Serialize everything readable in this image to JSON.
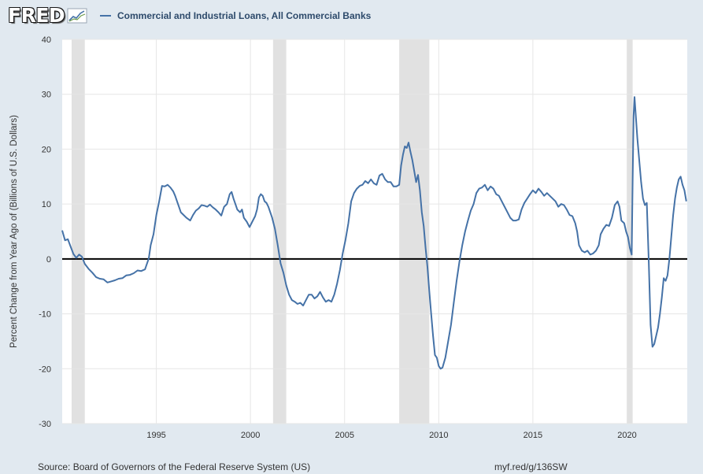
{
  "header": {
    "logo_text": "FRED",
    "legend_label": "Commercial and Industrial Loans, All Commercial Banks"
  },
  "footer": {
    "source": "Source: Board of Governors of the Federal Reserve System (US)",
    "url": "myf.red/g/136SW"
  },
  "colors": {
    "line": "#4572a7",
    "recession": "#e1e1e1",
    "zero_line": "#000000",
    "grid": "#e6e6e6",
    "background": "#e1e9f0",
    "plot": "#ffffff"
  },
  "chart_data": {
    "type": "line",
    "title": "",
    "xlabel": "",
    "ylabel": "Percent Change from Year Ago of (Billions of U.S. Dollars)",
    "xlim": [
      1990.0,
      2023.2
    ],
    "ylim": [
      -30,
      40
    ],
    "yticks": [
      -30,
      -20,
      -10,
      0,
      10,
      20,
      30,
      40
    ],
    "xticks": [
      1995,
      2000,
      2005,
      2010,
      2015,
      2020
    ],
    "grid": true,
    "recessions": [
      [
        1990.5,
        1991.2
      ],
      [
        2001.2,
        2001.9
      ],
      [
        2007.9,
        2009.5
      ],
      [
        2020.0,
        2020.3
      ]
    ],
    "series": [
      {
        "name": "Commercial and Industrial Loans, All Commercial Banks",
        "points": [
          [
            1990.0,
            5.2
          ],
          [
            1990.15,
            3.4
          ],
          [
            1990.3,
            3.6
          ],
          [
            1990.45,
            2.2
          ],
          [
            1990.6,
            0.9
          ],
          [
            1990.75,
            0.2
          ],
          [
            1990.9,
            0.8
          ],
          [
            1991.05,
            0.4
          ],
          [
            1991.2,
            -0.9
          ],
          [
            1991.4,
            -1.8
          ],
          [
            1991.6,
            -2.5
          ],
          [
            1991.8,
            -3.3
          ],
          [
            1992.0,
            -3.6
          ],
          [
            1992.2,
            -3.7
          ],
          [
            1992.4,
            -4.3
          ],
          [
            1992.6,
            -4.1
          ],
          [
            1992.8,
            -3.9
          ],
          [
            1993.0,
            -3.6
          ],
          [
            1993.2,
            -3.5
          ],
          [
            1993.4,
            -3.0
          ],
          [
            1993.6,
            -2.9
          ],
          [
            1993.8,
            -2.6
          ],
          [
            1994.0,
            -2.1
          ],
          [
            1994.2,
            -2.2
          ],
          [
            1994.4,
            -1.9
          ],
          [
            1994.6,
            0.1
          ],
          [
            1994.7,
            2.5
          ],
          [
            1994.85,
            4.5
          ],
          [
            1995.0,
            8.0
          ],
          [
            1995.15,
            10.5
          ],
          [
            1995.3,
            13.3
          ],
          [
            1995.45,
            13.2
          ],
          [
            1995.6,
            13.5
          ],
          [
            1995.75,
            13.0
          ],
          [
            1995.9,
            12.3
          ],
          [
            1996.0,
            11.5
          ],
          [
            1996.1,
            10.5
          ],
          [
            1996.2,
            9.5
          ],
          [
            1996.3,
            8.5
          ],
          [
            1996.45,
            8.0
          ],
          [
            1996.6,
            7.5
          ],
          [
            1996.8,
            7.0
          ],
          [
            1996.95,
            8.0
          ],
          [
            1997.1,
            8.8
          ],
          [
            1997.25,
            9.2
          ],
          [
            1997.4,
            9.8
          ],
          [
            1997.55,
            9.7
          ],
          [
            1997.7,
            9.5
          ],
          [
            1997.85,
            9.9
          ],
          [
            1998.0,
            9.4
          ],
          [
            1998.15,
            9.0
          ],
          [
            1998.3,
            8.5
          ],
          [
            1998.45,
            7.9
          ],
          [
            1998.6,
            9.5
          ],
          [
            1998.75,
            10.0
          ],
          [
            1998.9,
            11.8
          ],
          [
            1999.0,
            12.2
          ],
          [
            1999.1,
            11.0
          ],
          [
            1999.2,
            10.0
          ],
          [
            1999.3,
            9.0
          ],
          [
            1999.45,
            8.5
          ],
          [
            1999.55,
            9.0
          ],
          [
            1999.65,
            7.5
          ],
          [
            1999.8,
            6.8
          ],
          [
            1999.95,
            5.8
          ],
          [
            2000.1,
            6.8
          ],
          [
            2000.25,
            7.8
          ],
          [
            2000.35,
            9.0
          ],
          [
            2000.45,
            11.2
          ],
          [
            2000.55,
            11.8
          ],
          [
            2000.65,
            11.5
          ],
          [
            2000.75,
            10.5
          ],
          [
            2000.85,
            10.2
          ],
          [
            2000.95,
            9.5
          ],
          [
            2001.05,
            8.5
          ],
          [
            2001.15,
            7.5
          ],
          [
            2001.3,
            5.5
          ],
          [
            2001.45,
            2.5
          ],
          [
            2001.6,
            -0.8
          ],
          [
            2001.75,
            -2.5
          ],
          [
            2001.9,
            -4.8
          ],
          [
            2002.05,
            -6.5
          ],
          [
            2002.2,
            -7.5
          ],
          [
            2002.35,
            -7.8
          ],
          [
            2002.5,
            -8.2
          ],
          [
            2002.65,
            -8.0
          ],
          [
            2002.8,
            -8.5
          ],
          [
            2002.95,
            -7.5
          ],
          [
            2003.1,
            -6.5
          ],
          [
            2003.25,
            -6.5
          ],
          [
            2003.4,
            -7.2
          ],
          [
            2003.55,
            -6.8
          ],
          [
            2003.7,
            -6.0
          ],
          [
            2003.85,
            -7.0
          ],
          [
            2004.0,
            -7.8
          ],
          [
            2004.15,
            -7.5
          ],
          [
            2004.3,
            -7.8
          ],
          [
            2004.45,
            -6.5
          ],
          [
            2004.6,
            -4.5
          ],
          [
            2004.75,
            -2.0
          ],
          [
            2004.9,
            1.0
          ],
          [
            2005.05,
            3.5
          ],
          [
            2005.2,
            6.5
          ],
          [
            2005.35,
            10.5
          ],
          [
            2005.5,
            12.0
          ],
          [
            2005.65,
            12.8
          ],
          [
            2005.8,
            13.3
          ],
          [
            2005.95,
            13.5
          ],
          [
            2006.1,
            14.2
          ],
          [
            2006.25,
            13.8
          ],
          [
            2006.4,
            14.5
          ],
          [
            2006.55,
            13.8
          ],
          [
            2006.7,
            13.5
          ],
          [
            2006.85,
            15.2
          ],
          [
            2007.0,
            15.5
          ],
          [
            2007.15,
            14.5
          ],
          [
            2007.3,
            14.0
          ],
          [
            2007.45,
            14.0
          ],
          [
            2007.6,
            13.2
          ],
          [
            2007.75,
            13.2
          ],
          [
            2007.9,
            13.5
          ],
          [
            2008.0,
            17.0
          ],
          [
            2008.1,
            19.0
          ],
          [
            2008.2,
            20.5
          ],
          [
            2008.3,
            20.2
          ],
          [
            2008.4,
            21.2
          ],
          [
            2008.5,
            19.5
          ],
          [
            2008.6,
            18.0
          ],
          [
            2008.7,
            16.0
          ],
          [
            2008.8,
            14.0
          ],
          [
            2008.9,
            15.3
          ],
          [
            2009.0,
            12.5
          ],
          [
            2009.1,
            8.5
          ],
          [
            2009.2,
            6.0
          ],
          [
            2009.3,
            2.0
          ],
          [
            2009.4,
            -1.5
          ],
          [
            2009.5,
            -6.0
          ],
          [
            2009.6,
            -10.0
          ],
          [
            2009.7,
            -14.0
          ],
          [
            2009.8,
            -17.5
          ],
          [
            2009.9,
            -18.0
          ],
          [
            2010.0,
            -19.5
          ],
          [
            2010.1,
            -20.0
          ],
          [
            2010.2,
            -19.8
          ],
          [
            2010.35,
            -18.0
          ],
          [
            2010.5,
            -15.0
          ],
          [
            2010.65,
            -12.0
          ],
          [
            2010.8,
            -8.0
          ],
          [
            2010.95,
            -4.0
          ],
          [
            2011.1,
            -0.5
          ],
          [
            2011.25,
            2.5
          ],
          [
            2011.4,
            5.0
          ],
          [
            2011.55,
            7.0
          ],
          [
            2011.7,
            8.8
          ],
          [
            2011.85,
            10.0
          ],
          [
            2012.0,
            12.0
          ],
          [
            2012.15,
            12.8
          ],
          [
            2012.3,
            13.0
          ],
          [
            2012.45,
            13.5
          ],
          [
            2012.6,
            12.5
          ],
          [
            2012.75,
            13.2
          ],
          [
            2012.9,
            12.8
          ],
          [
            2013.05,
            11.8
          ],
          [
            2013.2,
            11.5
          ],
          [
            2013.35,
            10.5
          ],
          [
            2013.5,
            9.5
          ],
          [
            2013.65,
            8.5
          ],
          [
            2013.8,
            7.5
          ],
          [
            2013.95,
            7.0
          ],
          [
            2014.1,
            7.0
          ],
          [
            2014.25,
            7.2
          ],
          [
            2014.4,
            9.0
          ],
          [
            2014.55,
            10.2
          ],
          [
            2014.7,
            11.0
          ],
          [
            2014.85,
            11.8
          ],
          [
            2015.0,
            12.5
          ],
          [
            2015.15,
            12.0
          ],
          [
            2015.3,
            12.8
          ],
          [
            2015.45,
            12.2
          ],
          [
            2015.6,
            11.5
          ],
          [
            2015.75,
            12.0
          ],
          [
            2015.9,
            11.5
          ],
          [
            2016.05,
            11.0
          ],
          [
            2016.2,
            10.5
          ],
          [
            2016.35,
            9.5
          ],
          [
            2016.5,
            10.0
          ],
          [
            2016.65,
            9.8
          ],
          [
            2016.8,
            9.0
          ],
          [
            2016.95,
            8.0
          ],
          [
            2017.1,
            7.8
          ],
          [
            2017.25,
            6.5
          ],
          [
            2017.35,
            5.0
          ],
          [
            2017.45,
            2.5
          ],
          [
            2017.6,
            1.5
          ],
          [
            2017.75,
            1.2
          ],
          [
            2017.9,
            1.5
          ],
          [
            2018.05,
            0.8
          ],
          [
            2018.2,
            1.0
          ],
          [
            2018.35,
            1.5
          ],
          [
            2018.5,
            2.5
          ],
          [
            2018.6,
            4.5
          ],
          [
            2018.75,
            5.5
          ],
          [
            2018.9,
            6.2
          ],
          [
            2019.05,
            6.0
          ],
          [
            2019.2,
            7.5
          ],
          [
            2019.35,
            9.8
          ],
          [
            2019.5,
            10.5
          ],
          [
            2019.6,
            9.5
          ],
          [
            2019.7,
            7.0
          ],
          [
            2019.85,
            6.5
          ],
          [
            2019.95,
            5.0
          ],
          [
            2020.05,
            4.0
          ],
          [
            2020.15,
            2.0
          ],
          [
            2020.25,
            0.8
          ],
          [
            2020.3,
            14.0
          ],
          [
            2020.35,
            26.0
          ],
          [
            2020.4,
            29.5
          ],
          [
            2020.45,
            27.0
          ],
          [
            2020.55,
            22.0
          ],
          [
            2020.65,
            18.0
          ],
          [
            2020.75,
            14.0
          ],
          [
            2020.85,
            11.0
          ],
          [
            2020.95,
            9.8
          ],
          [
            2021.05,
            10.2
          ],
          [
            2021.15,
            0.0
          ],
          [
            2021.25,
            -12.0
          ],
          [
            2021.35,
            -16.0
          ],
          [
            2021.45,
            -15.5
          ],
          [
            2021.55,
            -14.0
          ],
          [
            2021.65,
            -12.5
          ],
          [
            2021.75,
            -10.0
          ],
          [
            2021.85,
            -7.0
          ],
          [
            2021.95,
            -3.5
          ],
          [
            2022.05,
            -4.0
          ],
          [
            2022.15,
            -3.0
          ],
          [
            2022.25,
            0.0
          ],
          [
            2022.35,
            4.0
          ],
          [
            2022.45,
            8.0
          ],
          [
            2022.55,
            11.0
          ],
          [
            2022.65,
            13.0
          ],
          [
            2022.75,
            14.5
          ],
          [
            2022.85,
            15.0
          ],
          [
            2022.95,
            13.5
          ],
          [
            2023.05,
            12.5
          ],
          [
            2023.15,
            10.5
          ]
        ]
      }
    ]
  }
}
